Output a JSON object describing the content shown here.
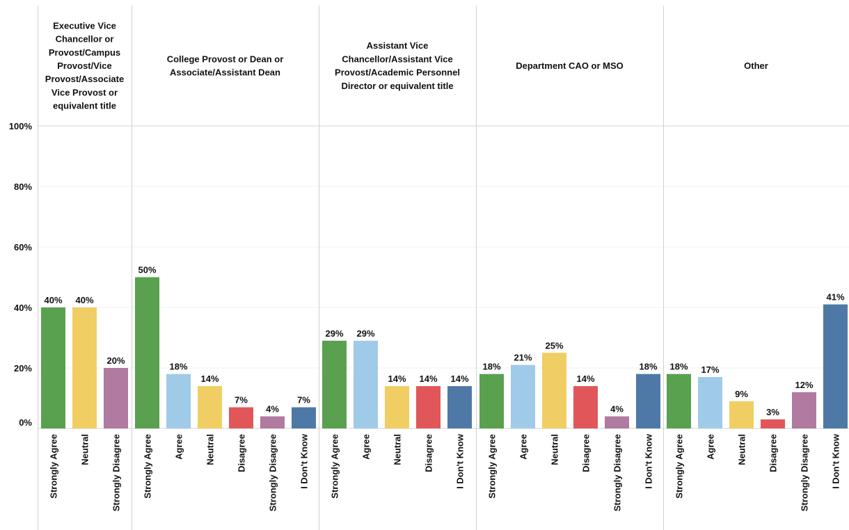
{
  "chart_data": {
    "type": "bar",
    "ylim": [
      0,
      100
    ],
    "y_ticks": [
      "0%",
      "20%",
      "40%",
      "60%",
      "80%",
      "100%"
    ],
    "y_tick_values": [
      0,
      20,
      40,
      60,
      80,
      100
    ],
    "grid": true,
    "value_suffix": "%",
    "colors": {
      "Strongly Agree": "#59a14f",
      "Agree": "#a0cbe8",
      "Neutral": "#f1ce63",
      "Disagree": "#e15759",
      "Strongly Disagree": "#b07aa1",
      "I Don't Know": "#4e79a7"
    },
    "panels": [
      {
        "title": "Executive Vice Chancellor or Provost/Campus Provost/Vice Provost/Associate Vice Provost or equivalent title",
        "title_lines": [
          "Executive Vice",
          "Chancellor or",
          "Provost/Campus",
          "Provost/Vice",
          "Provost/Associate",
          "Vice Provost or",
          "equivalent title"
        ],
        "categories": [
          "Strongly Agree",
          "Neutral",
          "Strongly Disagree"
        ],
        "values": [
          40,
          40,
          20
        ],
        "labels": [
          "40%",
          "40%",
          "20%"
        ]
      },
      {
        "title": "College Provost or Dean or Associate/Assistant Dean",
        "title_lines": [
          "College Provost or Dean or",
          "Associate/Assistant Dean"
        ],
        "categories": [
          "Strongly Agree",
          "Agree",
          "Neutral",
          "Disagree",
          "Strongly Disagree",
          "I Don't Know"
        ],
        "values": [
          50,
          18,
          14,
          7,
          4,
          7
        ],
        "labels": [
          "50%",
          "18%",
          "14%",
          "7%",
          "4%",
          "7%"
        ]
      },
      {
        "title": "Assistant Vice Chancellor/Assistant Vice Provost/Academic Personnel Director or equivalent title",
        "title_lines": [
          "Assistant Vice",
          "Chancellor/Assistant Vice",
          "Provost/Academic Personnel",
          "Director or equivalent title"
        ],
        "categories": [
          "Strongly Agree",
          "Agree",
          "Neutral",
          "Disagree",
          "I Don't Know"
        ],
        "values": [
          29,
          29,
          14,
          14,
          14
        ],
        "labels": [
          "29%",
          "29%",
          "14%",
          "14%",
          "14%"
        ]
      },
      {
        "title": "Department CAO or MSO",
        "title_lines": [
          "Department CAO or MSO"
        ],
        "categories": [
          "Strongly Agree",
          "Agree",
          "Neutral",
          "Disagree",
          "Strongly Disagree",
          "I Don't Know"
        ],
        "values": [
          18,
          21,
          25,
          14,
          4,
          18
        ],
        "labels": [
          "18%",
          "21%",
          "25%",
          "14%",
          "4%",
          "18%"
        ]
      },
      {
        "title": "Other",
        "title_lines": [
          "Other"
        ],
        "categories": [
          "Strongly Agree",
          "Agree",
          "Neutral",
          "Disagree",
          "Strongly Disagree",
          "I Don't Know"
        ],
        "values": [
          18,
          17,
          9,
          3,
          12,
          41
        ],
        "labels": [
          "18%",
          "17%",
          "9%",
          "3%",
          "12%",
          "41%"
        ]
      }
    ]
  }
}
